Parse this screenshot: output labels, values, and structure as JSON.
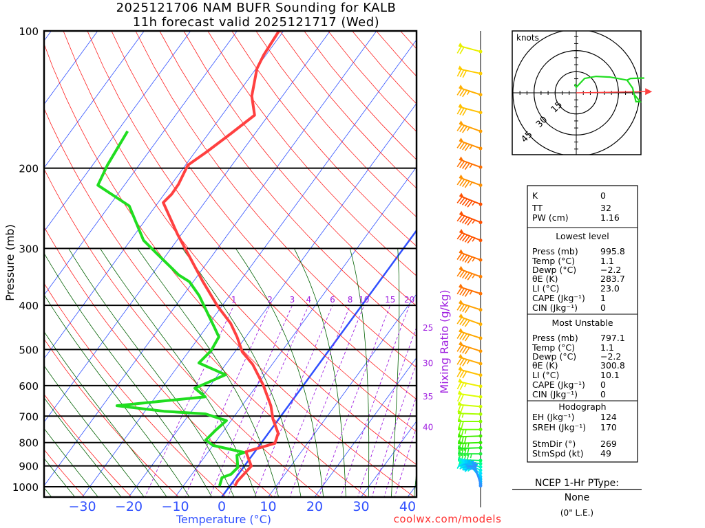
{
  "title": {
    "line1": "2025121706 NAM BUFR Sounding for KALB",
    "line2": "11h forecast valid 2025121717 (Wed)"
  },
  "axes": {
    "ylabel": "Pressure (mb)",
    "xlabel": "Temperature (°C)",
    "mixing_label": "Mixing Ratio (g/kg)",
    "credit": "coolwx.com/models"
  },
  "colors": {
    "temperature": "#ff4040",
    "dewpoint": "#20dd20",
    "isotherm": "#3050ff",
    "dry_adiabat": "#ff2020",
    "moist_adiabat": "#006000",
    "mixing_ratio": "#a020e0",
    "storm_motion": "#ff4040"
  },
  "chart_data": {
    "type": "skew-t",
    "title": "2025121706 NAM BUFR Sounding for KALB — 11h forecast valid 2025121717 (Wed)",
    "ylabel": "Pressure (mb)",
    "xlabel": "Temperature (°C)",
    "ylim": [
      1055,
      100
    ],
    "y_ticks": [
      100,
      200,
      300,
      400,
      500,
      600,
      700,
      800,
      900,
      1000
    ],
    "x_ticks": [
      -30,
      -20,
      -10,
      0,
      10,
      20,
      30,
      40
    ],
    "mixing_ratio_lines": [
      1,
      2,
      3,
      4,
      6,
      8,
      10,
      15,
      20,
      25,
      30,
      35,
      40
    ],
    "temperature": {
      "p": [
        996,
        972,
        901,
        838,
        803,
        763,
        711,
        664,
        598,
        539,
        506,
        469,
        438,
        401,
        355,
        309,
        279,
        238,
        228,
        217,
        197,
        184,
        168,
        153,
        139,
        121,
        113,
        100
      ],
      "t": [
        1.1,
        0.9,
        1.5,
        -1.9,
        3.0,
        2.1,
        -1.2,
        -3.8,
        -8.7,
        -14.2,
        -18.4,
        -21.9,
        -25.4,
        -31.0,
        -37.9,
        -45.4,
        -50.9,
        -58.9,
        -58.4,
        -58.5,
        -59.5,
        -57.5,
        -55.2,
        -53.0,
        -56.6,
        -59.8,
        -60.5,
        -61.0
      ]
    },
    "dewpoint": {
      "p": [
        996,
        955,
        939,
        907,
        853,
        841,
        812,
        790,
        750,
        716,
        692,
        683,
        664,
        635,
        608,
        568,
        535,
        503,
        469,
        445,
        415,
        381,
        355,
        343,
        309,
        288,
        242,
        218,
        197,
        166
      ],
      "t": [
        -2.2,
        -3.0,
        -1.6,
        -1.2,
        -3.3,
        -2.2,
        -9.9,
        -12.4,
        -11.8,
        -11.0,
        -16.6,
        -25.9,
        -36.9,
        -19.3,
        -22.9,
        -18.4,
        -26.0,
        -25.3,
        -25.8,
        -28.5,
        -32.1,
        -36.5,
        -40.8,
        -44.2,
        -52.0,
        -57.2,
        -65.7,
        -75.7,
        -76.8,
        -77.8
      ]
    },
    "winds": {
      "p": [
        111,
        124,
        138,
        151,
        166,
        181,
        199,
        218,
        240,
        263,
        288,
        318,
        346,
        377,
        409,
        440,
        472,
        504,
        537,
        569,
        602,
        635,
        667,
        693,
        719,
        749,
        774,
        800,
        821,
        847,
        876,
        890,
        905,
        920,
        935,
        950,
        962,
        974,
        985,
        995
      ],
      "spd": [
        20,
        30,
        35,
        30,
        35,
        45,
        45,
        45,
        55,
        55,
        55,
        55,
        55,
        45,
        40,
        40,
        40,
        40,
        35,
        30,
        25,
        20,
        20,
        15,
        20,
        25,
        30,
        35,
        40,
        45,
        45,
        50,
        50,
        45,
        40,
        35,
        30,
        25,
        20,
        15
      ],
      "dir": [
        255,
        258,
        252,
        255,
        250,
        250,
        250,
        250,
        248,
        248,
        248,
        250,
        250,
        252,
        252,
        250,
        252,
        252,
        253,
        255,
        258,
        262,
        265,
        268,
        270,
        270,
        272,
        272,
        272,
        270,
        268,
        262,
        255,
        245,
        235,
        225,
        215,
        205,
        200,
        195
      ],
      "color": [
        "#e8f000",
        "#ffcc00",
        "#ffb000",
        "#ffc000",
        "#ffa000",
        "#ff9000",
        "#ff7000",
        "#ff9000",
        "#ff5000",
        "#ff5000",
        "#ff5500",
        "#ff7000",
        "#ff8000",
        "#ff7000",
        "#ffa000",
        "#ffb000",
        "#ffa800",
        "#ff9800",
        "#ffaa00",
        "#ffc000",
        "#eef000",
        "#ddff00",
        "#ccff00",
        "#aaff00",
        "#88ff00",
        "#66ff00",
        "#44ee00",
        "#33ee00",
        "#22ee20",
        "#22ee40",
        "#00ff60",
        "#00ff90",
        "#00ffc0",
        "#00f0e0",
        "#00e0ff",
        "#00d0ff",
        "#00c0ff",
        "#10b0ff",
        "#20a0ff",
        "#3090ff"
      ]
    }
  },
  "hodograph": {
    "units_label": "knots",
    "rings": [
      15,
      30,
      45
    ],
    "ring_labels": [
      "15",
      "30",
      "45"
    ],
    "trace_uv": [
      [
        -1,
        6.3
      ],
      [
        0,
        3.9
      ],
      [
        5.9,
        10.2
      ],
      [
        14.1,
        11.7
      ],
      [
        23.9,
        11.2
      ],
      [
        36.1,
        9.0
      ],
      [
        40,
        3.4
      ],
      [
        42.4,
        -6.3
      ],
      [
        45.4,
        -6.3
      ],
      [
        41,
        -1
      ]
    ],
    "branch_uv": [
      [
        36.1,
        9.0
      ],
      [
        38.5,
        10.2
      ],
      [
        48.3,
        10.5
      ]
    ]
  },
  "stats": {
    "top": [
      {
        "label": "K",
        "value": "0"
      },
      {
        "label": "TT",
        "value": "32"
      },
      {
        "label": "PW (cm)",
        "value": "1.16"
      }
    ],
    "lowest_title": "Lowest level",
    "lowest": [
      {
        "label": "Press (mb)",
        "value": "995.8"
      },
      {
        "label": "Temp (°C)",
        "value": "1.1"
      },
      {
        "label": "Dewp (°C)",
        "value": "−2.2"
      },
      {
        "label": "θE (K)",
        "value": "283.7"
      },
      {
        "label": "LI (°C)",
        "value": "23.0"
      },
      {
        "label": "CAPE (Jkg⁻¹)",
        "value": "1"
      },
      {
        "label": "CIN (Jkg⁻¹)",
        "value": "0"
      }
    ],
    "mu_title": "Most Unstable",
    "mu": [
      {
        "label": "Press (mb)",
        "value": "797.1"
      },
      {
        "label": "Temp (°C)",
        "value": "1.1"
      },
      {
        "label": "Dewp (°C)",
        "value": "−2.2"
      },
      {
        "label": "θE (K)",
        "value": "300.8"
      },
      {
        "label": "LI (°C)",
        "value": "10.1"
      },
      {
        "label": "CAPE (Jkg⁻¹)",
        "value": "0"
      },
      {
        "label": "CIN (Jkg⁻¹)",
        "value": "0"
      }
    ],
    "hodo_title": "Hodograph",
    "hodo": [
      {
        "label": "EH (Jkg⁻¹)",
        "value": "124"
      },
      {
        "label": "SREH (Jkg⁻¹)",
        "value": "170"
      },
      {
        "label": "StmDir (°)",
        "value": "269"
      },
      {
        "label": "StmSpd (kt)",
        "value": "49"
      }
    ],
    "storm_dir": 269,
    "storm_spd": 49
  },
  "ptype": {
    "title": "NCEP 1-Hr PType:",
    "value": "None",
    "note": "(0\" L.E.)"
  }
}
